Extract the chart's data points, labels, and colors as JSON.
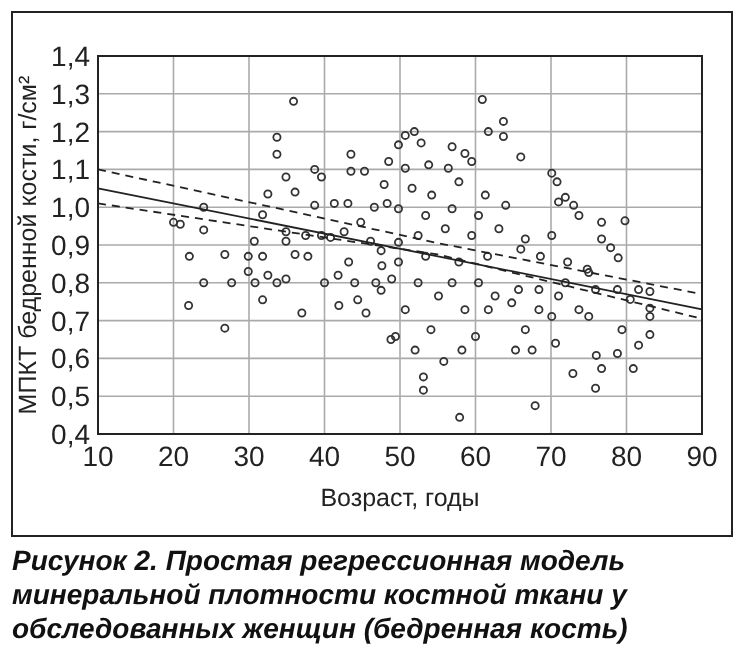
{
  "chart_data": {
    "type": "scatter",
    "xlabel": "Возраст, годы",
    "ylabel": "МПКТ бедренной кости, г/см²",
    "annotations": [
      "Рисунок 2. Простая регрессионная модель минеральной плотности костной ткани у обследованных женщин (бедренная кость)"
    ],
    "xlim": [
      10,
      90
    ],
    "xticks": [
      10,
      20,
      30,
      40,
      50,
      60,
      70,
      80,
      90
    ],
    "ylim": [
      0.4,
      1.4
    ],
    "yticks": [
      {
        "value": 0.4,
        "label": "0,4"
      },
      {
        "value": 0.5,
        "label": "0,5"
      },
      {
        "value": 0.6,
        "label": "0,6"
      },
      {
        "value": 0.7,
        "label": "0,7"
      },
      {
        "value": 0.8,
        "label": "0,8"
      },
      {
        "value": 0.9,
        "label": "0,9"
      },
      {
        "value": 1.0,
        "label": "1,0"
      },
      {
        "value": 1.1,
        "label": "1,1"
      },
      {
        "value": 1.2,
        "label": "1,2"
      },
      {
        "value": 1.3,
        "label": "1,3"
      },
      {
        "value": 1.4,
        "label": "1,4"
      }
    ],
    "grid": true,
    "marker": "circle",
    "series": [
      {
        "color": "#333333",
        "x": [
          20,
          20.9,
          22.1,
          22,
          24,
          24,
          24,
          26.8,
          26.8,
          27.7,
          29.9,
          29.9,
          30.7,
          30.8,
          31.8,
          31.8,
          31.8,
          32.5,
          32.5,
          33.7,
          33.7,
          33.7,
          34.9,
          34.9,
          34.9,
          34.9,
          35.9,
          36.1,
          36.1,
          37,
          37.5,
          37.8,
          38.7,
          38.7,
          39.6,
          39.6,
          40,
          40.8,
          41.3,
          41.8,
          41.9,
          42.6,
          43.1,
          43.2,
          43.5,
          43.5,
          44,
          44.4,
          44.8,
          45.3,
          45.5,
          46.1,
          46.6,
          46.8,
          47.5,
          47.6,
          47.9,
          48.8,
          48.3,
          47.5,
          60.9,
          61.7,
          63.7,
          63.7,
          66,
          70.1,
          70.8,
          71,
          71.9,
          73,
          73.7,
          76.7,
          79.8,
          76.7,
          77.9,
          78.9,
          75,
          75.9,
          78.8,
          80.5,
          81.6,
          83.1,
          83.1,
          83.1,
          83.1,
          81.6,
          80.9,
          79.4,
          78.8,
          76,
          75.9,
          76.7,
          72.9,
          67.9,
          57.9,
          53.1,
          53.1,
          55.8,
          52,
          49.4,
          54.1,
          58.2,
          60,
          65.3,
          67.5,
          70.6,
          66.6,
          70.1,
          73.7,
          75,
          68.4,
          64.8,
          61.7,
          58.6,
          55.1,
          50.7,
          68.4,
          71,
          71.9,
          65.7,
          62.6,
          60.4,
          56.9,
          52.4,
          48.9,
          49.8,
          53.4,
          57.8,
          61.6,
          66,
          68.6,
          72.2,
          74.8,
          49.8,
          52.4,
          56,
          59.5,
          63.1,
          66.6,
          70.1,
          53.4,
          56.9,
          60.4,
          64,
          49.8,
          51.6,
          54.2,
          57.8,
          61.3,
          50.7,
          53.8,
          56.4,
          59.5,
          48.5,
          49.8,
          51.9,
          52.8,
          56.9,
          58.6,
          50.7
        ],
        "values": [
          0.96,
          0.955,
          0.87,
          0.74,
          1.0,
          0.94,
          0.8,
          0.68,
          0.875,
          0.8,
          0.87,
          0.83,
          0.91,
          0.8,
          0.87,
          0.755,
          0.98,
          1.035,
          0.82,
          0.8,
          1.14,
          1.185,
          1.08,
          0.935,
          0.91,
          0.81,
          1.28,
          1.04,
          0.875,
          0.72,
          0.925,
          0.87,
          1.1,
          1.005,
          1.08,
          0.925,
          0.8,
          0.92,
          1.01,
          0.82,
          0.74,
          0.935,
          1.01,
          0.855,
          1.14,
          1.095,
          0.8,
          0.755,
          0.96,
          1.095,
          0.72,
          0.91,
          1.0,
          0.8,
          0.885,
          0.845,
          1.06,
          0.65,
          1.01,
          0.78,
          1.285,
          1.2,
          1.227,
          1.187,
          1.133,
          1.09,
          1.067,
          1.014,
          1.026,
          1.005,
          0.978,
          0.96,
          0.964,
          0.916,
          0.893,
          0.866,
          0.827,
          0.782,
          0.782,
          0.756,
          0.782,
          0.777,
          0.733,
          0.711,
          0.663,
          0.635,
          0.573,
          0.676,
          0.613,
          0.608,
          0.521,
          0.573,
          0.56,
          0.475,
          0.444,
          0.551,
          0.516,
          0.592,
          0.622,
          0.658,
          0.676,
          0.622,
          0.658,
          0.622,
          0.622,
          0.64,
          0.676,
          0.711,
          0.729,
          0.711,
          0.729,
          0.747,
          0.729,
          0.729,
          0.765,
          0.729,
          0.782,
          0.765,
          0.8,
          0.782,
          0.765,
          0.8,
          0.8,
          0.8,
          0.81,
          0.855,
          0.87,
          0.855,
          0.87,
          0.889,
          0.87,
          0.855,
          0.836,
          0.907,
          0.925,
          0.943,
          0.925,
          0.943,
          0.916,
          0.925,
          0.978,
          0.996,
          0.978,
          1.005,
          0.996,
          1.05,
          1.032,
          1.067,
          1.032,
          1.103,
          1.112,
          1.103,
          1.121,
          1.121,
          1.165,
          1.2,
          1.17,
          1.16,
          1.142,
          1.19
        ]
      },
      {
        "type": "line",
        "marker": "none",
        "color": "#222222",
        "line_style": "solid",
        "x": [
          10,
          90
        ],
        "values": [
          1.05,
          0.73
        ]
      },
      {
        "type": "line",
        "marker": "none",
        "color": "#222222",
        "line_style": "dashed",
        "x": [
          10,
          55,
          90
        ],
        "values": [
          1.1,
          0.905,
          0.77
        ]
      },
      {
        "type": "line",
        "marker": "none",
        "color": "#222222",
        "line_style": "dashed",
        "x": [
          10,
          55,
          90
        ],
        "values": [
          1.01,
          0.875,
          0.705
        ]
      }
    ]
  }
}
